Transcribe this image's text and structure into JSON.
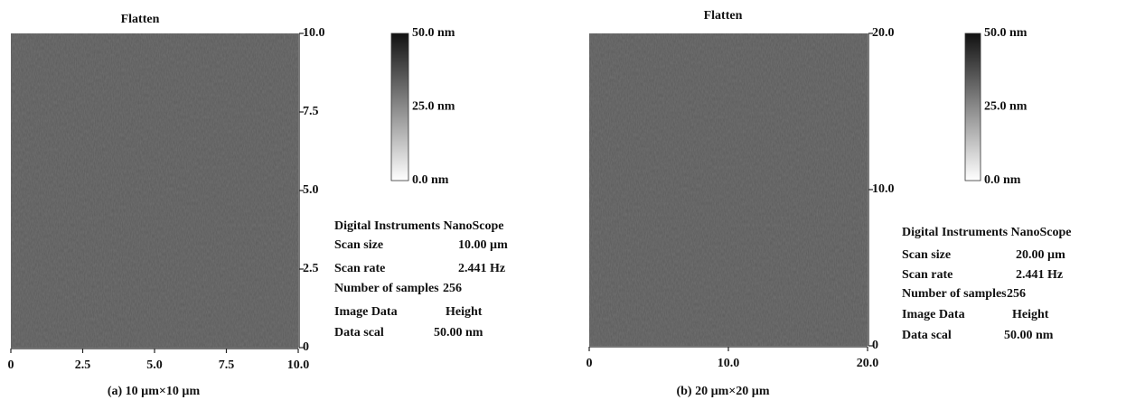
{
  "panels": [
    {
      "title": "Flatten",
      "xlim": [
        0,
        10
      ],
      "xticks": [
        0,
        2.5,
        {
          "value": 5,
          "label": "5.0"
        },
        7.5,
        {
          "value": 10,
          "label": "10.0"
        }
      ],
      "ylim": [
        0,
        10
      ],
      "yticks": [
        0,
        2.5,
        {
          "value": 5,
          "label": "5.0"
        },
        7.5,
        {
          "value": 10,
          "label": "10.0"
        }
      ],
      "colorbar": {
        "top": "50.0 nm",
        "middle": "25.0 nm",
        "bottom": "0.0 nm"
      },
      "instrument": "Digital Instruments NanoScope",
      "info": [
        {
          "label": "Scan size",
          "value": "10.00 µm"
        },
        {
          "label": "Scan rate",
          "value": "2.441 Hz"
        },
        {
          "label": "Number of samples",
          "value": "256"
        },
        {
          "label": "Image Data",
          "value": "Height"
        },
        {
          "label": "Data scal",
          "value": "50.00 nm"
        }
      ],
      "caption": "(a) 10 µm×10 µm"
    },
    {
      "title": "Flatten",
      "xlim": [
        0,
        20
      ],
      "xticks": [
        0,
        {
          "value": 10,
          "label": "10.0"
        },
        {
          "value": 20,
          "label": "20.0"
        }
      ],
      "ylim": [
        0,
        20
      ],
      "yticks": [
        0,
        {
          "value": 10,
          "label": "10.0"
        },
        {
          "value": 20,
          "label": "20.0"
        }
      ],
      "colorbar": {
        "top": "50.0 nm",
        "middle": "25.0 nm",
        "bottom": "0.0 nm"
      },
      "instrument": "Digital Instruments NanoScope",
      "info": [
        {
          "label": "Scan size",
          "value": "20.00 µm"
        },
        {
          "label": "Scan rate",
          "value": "2.441 Hz"
        },
        {
          "label": "Number of samples",
          "value": "256"
        },
        {
          "label": "Image Data",
          "value": "Height"
        },
        {
          "label": "Data scal",
          "value": "50.00 nm"
        }
      ],
      "caption": "(b) 20 µm×20 µm"
    }
  ]
}
